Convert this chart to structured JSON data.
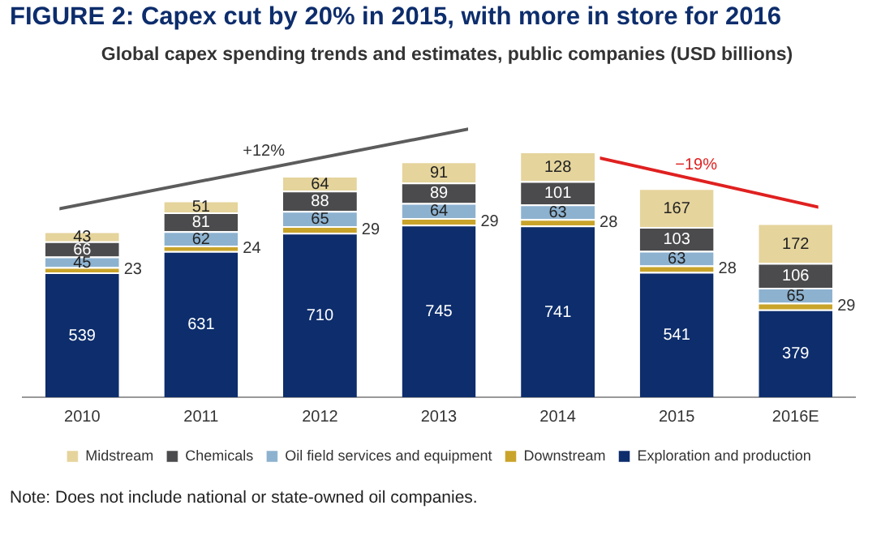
{
  "chart_data": {
    "type": "bar",
    "title": "FIGURE 2: Capex cut by 20% in 2015, with more in store for 2016",
    "subtitle": "Global capex spending trends and estimates, public companies (USD billions)",
    "categories": [
      "2010",
      "2011",
      "2012",
      "2013",
      "2014",
      "2015",
      "2016E"
    ],
    "stacked": true,
    "data_labels": true,
    "grid": false,
    "legend": "bottom",
    "series": [
      {
        "name": "Exploration and production",
        "color": "#0d2d6c",
        "values": [
          539,
          631,
          710,
          745,
          741,
          541,
          379
        ]
      },
      {
        "name": "Downstream",
        "color": "#c9a42a",
        "values": [
          23,
          24,
          29,
          29,
          28,
          28,
          29
        ]
      },
      {
        "name": "Oil field services and equipment",
        "color": "#8db2d0",
        "values": [
          45,
          62,
          65,
          64,
          63,
          63,
          65
        ]
      },
      {
        "name": "Chemicals",
        "color": "#4b4b4d",
        "values": [
          66,
          81,
          88,
          89,
          101,
          103,
          106
        ]
      },
      {
        "name": "Midstream",
        "color": "#e5d49c",
        "values": [
          43,
          51,
          64,
          91,
          128,
          167,
          172
        ]
      }
    ],
    "annotations": [
      "+12%",
      "−19%",
      "Note: Does not include national or state-owned oil companies."
    ]
  }
}
